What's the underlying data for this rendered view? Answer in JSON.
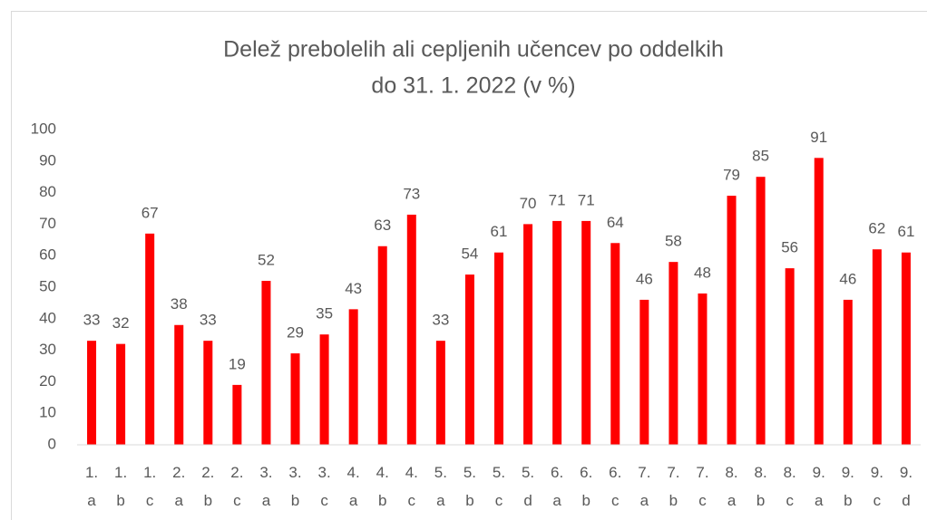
{
  "chart_data": {
    "type": "bar",
    "title": [
      "Delež prebolelih ali cepljenih učencev po oddelkih",
      "do 31. 1. 2022 (v %)"
    ],
    "categories": [
      "1. a",
      "1. b",
      "1. c",
      "2. a",
      "2. b",
      "2. c",
      "3. a",
      "3. b",
      "3. c",
      "4. a",
      "4. b",
      "4. c",
      "5. a",
      "5. b",
      "5. c",
      "5. d",
      "6. a",
      "6. b",
      "6. c",
      "7. a",
      "7. b",
      "7. c",
      "8. a",
      "8. b",
      "8. c",
      "9. a",
      "9. b",
      "9. c",
      "9. d"
    ],
    "values": [
      33,
      32,
      67,
      38,
      33,
      19,
      52,
      29,
      35,
      43,
      63,
      73,
      33,
      54,
      61,
      70,
      71,
      71,
      64,
      46,
      58,
      48,
      79,
      85,
      56,
      91,
      46,
      62,
      61
    ],
    "color": "#ff0000",
    "ylim": [
      0,
      100
    ],
    "yticks": [
      0,
      10,
      20,
      30,
      40,
      50,
      60,
      70,
      80,
      90,
      100
    ],
    "grid": false
  }
}
